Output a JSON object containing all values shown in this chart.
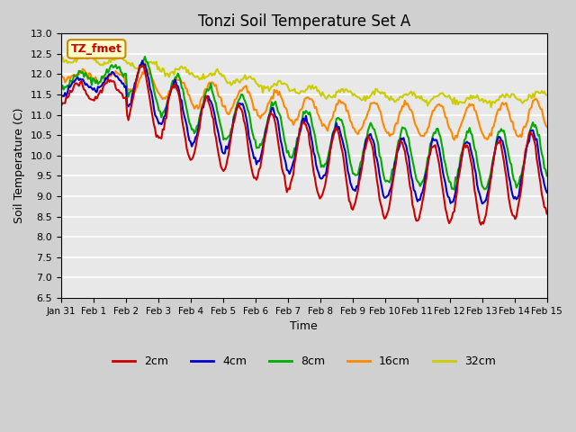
{
  "title": "Tonzi Soil Temperature Set A",
  "xlabel": "Time",
  "ylabel": "Soil Temperature (C)",
  "ylim": [
    6.5,
    13.0
  ],
  "annotation_label": "TZ_fmet",
  "annotation_color": "#cc0000",
  "annotation_bg": "#ffffcc",
  "annotation_border": "#cc8800",
  "series_colors": {
    "2cm": "#cc0000",
    "4cm": "#0000cc",
    "8cm": "#00aa00",
    "16cm": "#ff8800",
    "32cm": "#cccc00"
  },
  "series_linewidths": {
    "2cm": 1.5,
    "4cm": 1.5,
    "8cm": 1.5,
    "16cm": 1.5,
    "32cm": 1.5
  },
  "tick_labels": [
    "Jan 31",
    "Feb 1",
    "Feb 2",
    "Feb 3",
    "Feb 4",
    "Feb 5",
    "Feb 6",
    "Feb 7",
    "Feb 8",
    "Feb 9",
    "Feb 10",
    "Feb 11",
    "Feb 12",
    "Feb 13",
    "Feb 14",
    "Feb 15"
  ],
  "tick_positions": [
    0,
    1,
    2,
    3,
    4,
    5,
    6,
    7,
    8,
    9,
    10,
    11,
    12,
    13,
    14,
    15
  ],
  "yticks": [
    6.5,
    7.0,
    7.5,
    8.0,
    8.5,
    9.0,
    9.5,
    10.0,
    10.5,
    11.0,
    11.5,
    12.0,
    12.5,
    13.0
  ]
}
